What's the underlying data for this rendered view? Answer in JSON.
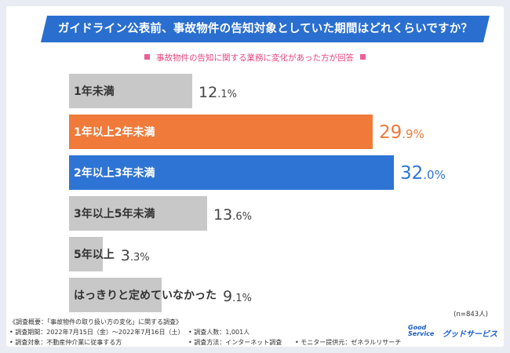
{
  "banner": {
    "title": "ガイドライン公表前、事故物件の告知対象としていた期間はどれくらいですか？"
  },
  "subtitle": "事故物件の告知に関する業務に変化があった方が回答",
  "colors": {
    "gray": "#c8c8c8",
    "orange": "#ef7a3a",
    "blue": "#2e74d4",
    "banner": "#2a6fcf"
  },
  "chart_data": {
    "type": "bar",
    "orientation": "horizontal",
    "categories": [
      "1年未満",
      "1年以上2年未満",
      "2年以上3年未満",
      "3年以上5年未満",
      "5年以上",
      "はっきりと定めていなかった"
    ],
    "values": [
      12.1,
      29.9,
      32.0,
      13.6,
      3.3,
      9.1
    ],
    "value_labels": [
      {
        "int": "12",
        "dec": ".1",
        "pct": "%"
      },
      {
        "int": "29",
        "dec": ".9",
        "pct": "%"
      },
      {
        "int": "32",
        "dec": ".0",
        "pct": "%"
      },
      {
        "int": "13",
        "dec": ".6",
        "pct": "%"
      },
      {
        "int": "3",
        "dec": ".3",
        "pct": "%"
      },
      {
        "int": "9",
        "dec": ".1",
        "pct": "%"
      }
    ],
    "highlight": [
      "gray",
      "orange",
      "blue",
      "gray",
      "gray",
      "gray"
    ],
    "unit": "%",
    "xlim": [
      0,
      32.0
    ]
  },
  "sample_size": "(n=843人)",
  "footnotes": {
    "survey_title": "《調査概要：「事故物件の取り扱い方の変化」に関する調査》",
    "period": "• 調査期間：2022年7月15日（金）〜2022年7月16日（土）",
    "respondents": "• 調査人数：1,001人",
    "target": "• 調査対象：不動産仲介業に従事する方",
    "method": "• 調査方法：インターネット調査",
    "provider": "• モニター提供元：ゼネラルリサーチ"
  },
  "logo": {
    "good": "Good",
    "service": "Service",
    "name": "グッドサービス"
  }
}
